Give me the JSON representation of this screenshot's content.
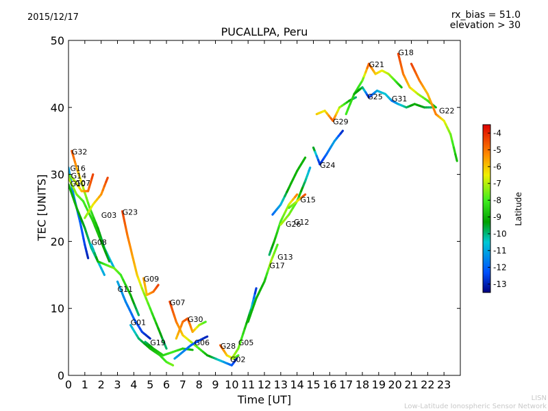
{
  "header": {
    "date": "2015/12/17",
    "rx_bias": "rx_bias = 51.0",
    "elevation": "elevation > 30"
  },
  "footer": {
    "line1": "LISN",
    "line2": "Low-Latitude Ionospheric Sensor Network"
  },
  "chart_data": {
    "type": "scatter",
    "title": "PUCALLPA, Peru",
    "xlabel": "Time [UT]",
    "ylabel": "TEC [UNITS]",
    "xlim": [
      0,
      24
    ],
    "ylim": [
      0,
      50
    ],
    "xticks": [
      "0",
      "1",
      "2",
      "3",
      "4",
      "5",
      "6",
      "7",
      "8",
      "9",
      "10",
      "11",
      "12",
      "13",
      "14",
      "15",
      "16",
      "17",
      "18",
      "19",
      "20",
      "21",
      "22",
      "23"
    ],
    "yticks": [
      "0",
      "10",
      "20",
      "30",
      "40",
      "50"
    ],
    "colorbar": {
      "label": "Latitude",
      "range": [
        -13.5,
        -3.5
      ],
      "ticks": [
        "-4",
        "-5",
        "-6",
        "-7",
        "-8",
        "-9",
        "-10",
        "-11",
        "-12",
        "-13"
      ],
      "tick_values": [
        -4,
        -5,
        -6,
        -7,
        -8,
        -9,
        -10,
        -11,
        -12,
        -13
      ]
    },
    "series": [
      {
        "name": "G32",
        "label_at": [
          0.2,
          33
        ],
        "points": [
          [
            0.2,
            33.5,
            -4.5
          ],
          [
            0.5,
            31,
            -5.5
          ],
          [
            0.9,
            28,
            -7
          ],
          [
            1.3,
            25,
            -8
          ],
          [
            1.8,
            22,
            -9
          ],
          [
            2.2,
            19,
            -10
          ],
          [
            2.8,
            16,
            -11
          ]
        ]
      },
      {
        "name": "G16",
        "label_at": [
          0.1,
          30.5
        ],
        "points": [
          [
            0.0,
            31,
            -11
          ],
          [
            0.3,
            27,
            -11.5
          ],
          [
            0.7,
            23,
            -12
          ],
          [
            1.0,
            19.5,
            -12.5
          ],
          [
            1.2,
            17.5,
            -13
          ]
        ]
      },
      {
        "name": "G14",
        "label_at": [
          0.15,
          29.4
        ],
        "points": [
          [
            0.0,
            30,
            -8
          ],
          [
            0.4,
            29,
            -7
          ],
          [
            0.8,
            27.5,
            -6
          ],
          [
            1.2,
            27.5,
            -5
          ],
          [
            1.5,
            30,
            -4.3
          ]
        ]
      },
      {
        "name": "G10",
        "label_at": [
          0.1,
          28.2
        ],
        "points": [
          [
            0.0,
            28.5,
            -9
          ],
          [
            0.5,
            25,
            -9
          ],
          [
            1.0,
            22,
            -9.5
          ],
          [
            1.4,
            19,
            -10
          ],
          [
            1.8,
            17,
            -10.5
          ],
          [
            2.2,
            15,
            -11
          ]
        ]
      },
      {
        "name": "G07",
        "label_at": [
          0.4,
          28.3
        ],
        "points": [
          [
            0.0,
            29.5,
            -7
          ],
          [
            0.5,
            27,
            -7.5
          ],
          [
            0.9,
            26,
            -8
          ],
          [
            1.5,
            23,
            -8.5
          ],
          [
            2.0,
            20,
            -9
          ],
          [
            2.5,
            17,
            -9.5
          ]
        ]
      },
      {
        "name": "G03",
        "label_at": [
          2.0,
          23.5
        ],
        "points": [
          [
            1.0,
            23.5,
            -7.5
          ],
          [
            1.5,
            25.5,
            -6.5
          ],
          [
            2.0,
            27,
            -5.5
          ],
          [
            2.4,
            29.5,
            -4.3
          ]
        ]
      },
      {
        "name": "G08",
        "label_at": [
          1.4,
          19.5
        ],
        "points": [
          [
            1.4,
            19.5,
            -11
          ],
          [
            1.8,
            17,
            -9
          ],
          [
            2.3,
            16.5,
            -8
          ],
          [
            2.8,
            16,
            -7.5
          ],
          [
            3.2,
            15,
            -8
          ],
          [
            3.8,
            12,
            -9
          ],
          [
            4.3,
            9,
            -10
          ]
        ]
      },
      {
        "name": "G23",
        "label_at": [
          3.3,
          24
        ],
        "points": [
          [
            3.3,
            24.5,
            -4.3
          ],
          [
            3.6,
            21,
            -5
          ],
          [
            3.9,
            18,
            -5.5
          ],
          [
            4.2,
            15,
            -6
          ],
          [
            4.5,
            13,
            -7
          ],
          [
            5.0,
            10,
            -8
          ],
          [
            5.5,
            7,
            -9
          ],
          [
            6.0,
            4,
            -10
          ]
        ]
      },
      {
        "name": "G11",
        "label_at": [
          3.0,
          12.5
        ],
        "points": [
          [
            3.0,
            14,
            -11
          ],
          [
            3.5,
            11,
            -11.5
          ],
          [
            4.0,
            8.5,
            -12
          ],
          [
            4.5,
            6.5,
            -12.5
          ],
          [
            5.0,
            5.5,
            -13
          ]
        ]
      },
      {
        "name": "G01",
        "label_at": [
          3.8,
          7.5
        ],
        "points": [
          [
            3.8,
            7.5,
            -11
          ],
          [
            4.3,
            5.5,
            -10
          ],
          [
            5.0,
            4,
            -9
          ],
          [
            5.6,
            3,
            -8.5
          ],
          [
            6.0,
            2,
            -8
          ],
          [
            6.4,
            1.5,
            -7.5
          ]
        ]
      },
      {
        "name": "G09",
        "label_at": [
          4.6,
          14
        ],
        "points": [
          [
            4.6,
            14.5,
            -5.5
          ],
          [
            4.8,
            12,
            -6
          ],
          [
            5.2,
            12.5,
            -5
          ],
          [
            5.5,
            13.5,
            -4.3
          ]
        ]
      },
      {
        "name": "G19",
        "label_at": [
          5.0,
          4.5
        ],
        "points": [
          [
            4.7,
            5,
            -10
          ],
          [
            5.2,
            4,
            -9
          ],
          [
            5.8,
            3,
            -8.5
          ],
          [
            6.4,
            3.5,
            -8
          ],
          [
            7.0,
            4,
            -8.5
          ],
          [
            7.6,
            3.8,
            -9
          ]
        ]
      },
      {
        "name": "G07",
        "label_at": [
          6.2,
          10.5
        ],
        "points": [
          [
            6.2,
            11,
            -4.3
          ],
          [
            6.6,
            8,
            -5
          ],
          [
            7.0,
            6,
            -6
          ],
          [
            7.5,
            5,
            -7
          ],
          [
            8.0,
            4,
            -8
          ],
          [
            8.5,
            3,
            -9
          ]
        ]
      },
      {
        "name": "G30",
        "label_at": [
          7.3,
          8
        ],
        "points": [
          [
            6.6,
            5.5,
            -6
          ],
          [
            7.0,
            8,
            -5
          ],
          [
            7.3,
            8.5,
            -4.5
          ],
          [
            7.6,
            6.5,
            -5.5
          ],
          [
            8.0,
            7.5,
            -7
          ],
          [
            8.4,
            8,
            -8
          ]
        ]
      },
      {
        "name": "G06",
        "label_at": [
          7.7,
          4.5
        ],
        "points": [
          [
            6.5,
            2.5,
            -11
          ],
          [
            7.0,
            3.5,
            -11.5
          ],
          [
            7.5,
            4.5,
            -12
          ],
          [
            8.0,
            5.2,
            -12.5
          ],
          [
            8.5,
            5.8,
            -13
          ]
        ]
      },
      {
        "name": "G28",
        "label_at": [
          9.3,
          4
        ],
        "points": [
          [
            9.3,
            4.5,
            -4.5
          ],
          [
            9.7,
            3,
            -6
          ],
          [
            10.1,
            2.5,
            -7
          ],
          [
            10.4,
            3,
            -8
          ]
        ]
      },
      {
        "name": "G02",
        "label_at": [
          9.9,
          2
        ],
        "points": [
          [
            8.5,
            3,
            -9
          ],
          [
            9.0,
            2.5,
            -10
          ],
          [
            9.5,
            2,
            -11
          ],
          [
            10.0,
            1.5,
            -12
          ],
          [
            10.3,
            2.5,
            -13
          ]
        ]
      },
      {
        "name": "G05",
        "label_at": [
          10.4,
          4.5
        ],
        "points": [
          [
            10.0,
            2.5,
            -7
          ],
          [
            10.4,
            4,
            -7.5
          ],
          [
            10.8,
            7,
            -8.5
          ],
          [
            11.2,
            10,
            -10
          ],
          [
            11.5,
            13,
            -13
          ]
        ]
      },
      {
        "name": "G17",
        "label_at": [
          12.3,
          16
        ],
        "points": [
          [
            11.0,
            8,
            -9
          ],
          [
            11.5,
            11.5,
            -9
          ],
          [
            12.0,
            14,
            -9
          ],
          [
            12.4,
            17,
            -7
          ],
          [
            12.8,
            19.5,
            -8
          ]
        ]
      },
      {
        "name": "G13",
        "label_at": [
          12.8,
          17.3
        ],
        "points": [
          [
            12.3,
            18,
            -10
          ],
          [
            12.6,
            20,
            -9
          ],
          [
            13.0,
            23,
            -8
          ],
          [
            13.5,
            25.5,
            -7
          ],
          [
            14.0,
            27,
            -5
          ]
        ]
      },
      {
        "name": "G12",
        "label_at": [
          13.8,
          22.5
        ],
        "points": [
          [
            13.0,
            22.5,
            -7
          ],
          [
            13.5,
            24,
            -7.5
          ],
          [
            14.0,
            26,
            -8
          ],
          [
            14.5,
            29,
            -10
          ],
          [
            14.8,
            31,
            -11
          ]
        ]
      },
      {
        "name": "G26",
        "label_at": [
          13.3,
          22.2
        ],
        "points": [
          [
            12.5,
            24,
            -12
          ],
          [
            13.0,
            25.5,
            -11
          ],
          [
            13.5,
            28,
            -9
          ],
          [
            14.0,
            30.5,
            -9
          ],
          [
            14.5,
            32.5,
            -9
          ]
        ]
      },
      {
        "name": "G15",
        "label_at": [
          14.2,
          25.8
        ],
        "points": [
          [
            13.5,
            25,
            -8
          ],
          [
            14.0,
            26,
            -7
          ],
          [
            14.5,
            27,
            -4.3
          ]
        ]
      },
      {
        "name": "G24",
        "label_at": [
          15.4,
          31
        ],
        "points": [
          [
            15.0,
            34,
            -9
          ],
          [
            15.4,
            31.5,
            -13
          ],
          [
            15.8,
            33,
            -12
          ],
          [
            16.3,
            35,
            -11
          ],
          [
            16.8,
            36.5,
            -13
          ]
        ]
      },
      {
        "name": "G29",
        "label_at": [
          16.2,
          37.5
        ],
        "points": [
          [
            15.2,
            39,
            -6
          ],
          [
            15.7,
            39.5,
            -6.5
          ],
          [
            16.2,
            38,
            -4.5
          ],
          [
            16.6,
            40,
            -7
          ],
          [
            17.2,
            41,
            -9
          ],
          [
            17.6,
            41.5,
            -10
          ]
        ]
      },
      {
        "name": "G21",
        "label_at": [
          18.4,
          46
        ],
        "points": [
          [
            17.0,
            39,
            -8
          ],
          [
            17.5,
            42,
            -8.5
          ],
          [
            18.0,
            44,
            -8
          ],
          [
            18.4,
            46.5,
            -4.5
          ],
          [
            18.8,
            45,
            -6
          ],
          [
            19.2,
            45.5,
            -6.5
          ],
          [
            19.6,
            45,
            -7
          ],
          [
            20.0,
            44,
            -8
          ],
          [
            20.4,
            43,
            -9
          ]
        ]
      },
      {
        "name": "G18",
        "label_at": [
          20.2,
          47.8
        ],
        "points": [
          [
            20.2,
            48,
            -4.3
          ],
          [
            20.5,
            45,
            -5
          ],
          [
            20.9,
            43,
            -6
          ],
          [
            21.4,
            42,
            -7
          ],
          [
            22.0,
            41,
            -8
          ],
          [
            22.5,
            40,
            -9
          ]
        ]
      },
      {
        "name": "G25",
        "label_at": [
          18.3,
          41.2
        ],
        "points": [
          [
            17.5,
            42,
            -9
          ],
          [
            18.0,
            43,
            -9.5
          ],
          [
            18.4,
            41.5,
            -13
          ],
          [
            18.9,
            42.5,
            -11
          ],
          [
            19.4,
            42,
            -10.5
          ],
          [
            19.8,
            41,
            -11
          ]
        ]
      },
      {
        "name": "G31",
        "label_at": [
          19.8,
          40.9
        ],
        "points": [
          [
            19.8,
            41,
            -12
          ],
          [
            20.2,
            40.5,
            -11
          ],
          [
            20.7,
            40,
            -10
          ],
          [
            21.2,
            40.5,
            -9
          ],
          [
            21.8,
            40,
            -9.5
          ],
          [
            22.3,
            40,
            -10
          ]
        ]
      },
      {
        "name": "G22",
        "label_at": [
          22.7,
          39.1
        ],
        "points": [
          [
            21.0,
            46.5,
            -4.3
          ],
          [
            21.5,
            44,
            -5
          ],
          [
            22.0,
            42,
            -6
          ],
          [
            22.5,
            39,
            -5
          ],
          [
            23.0,
            38,
            -6.5
          ],
          [
            23.4,
            36,
            -7.5
          ],
          [
            23.8,
            32,
            -9
          ]
        ]
      }
    ]
  }
}
